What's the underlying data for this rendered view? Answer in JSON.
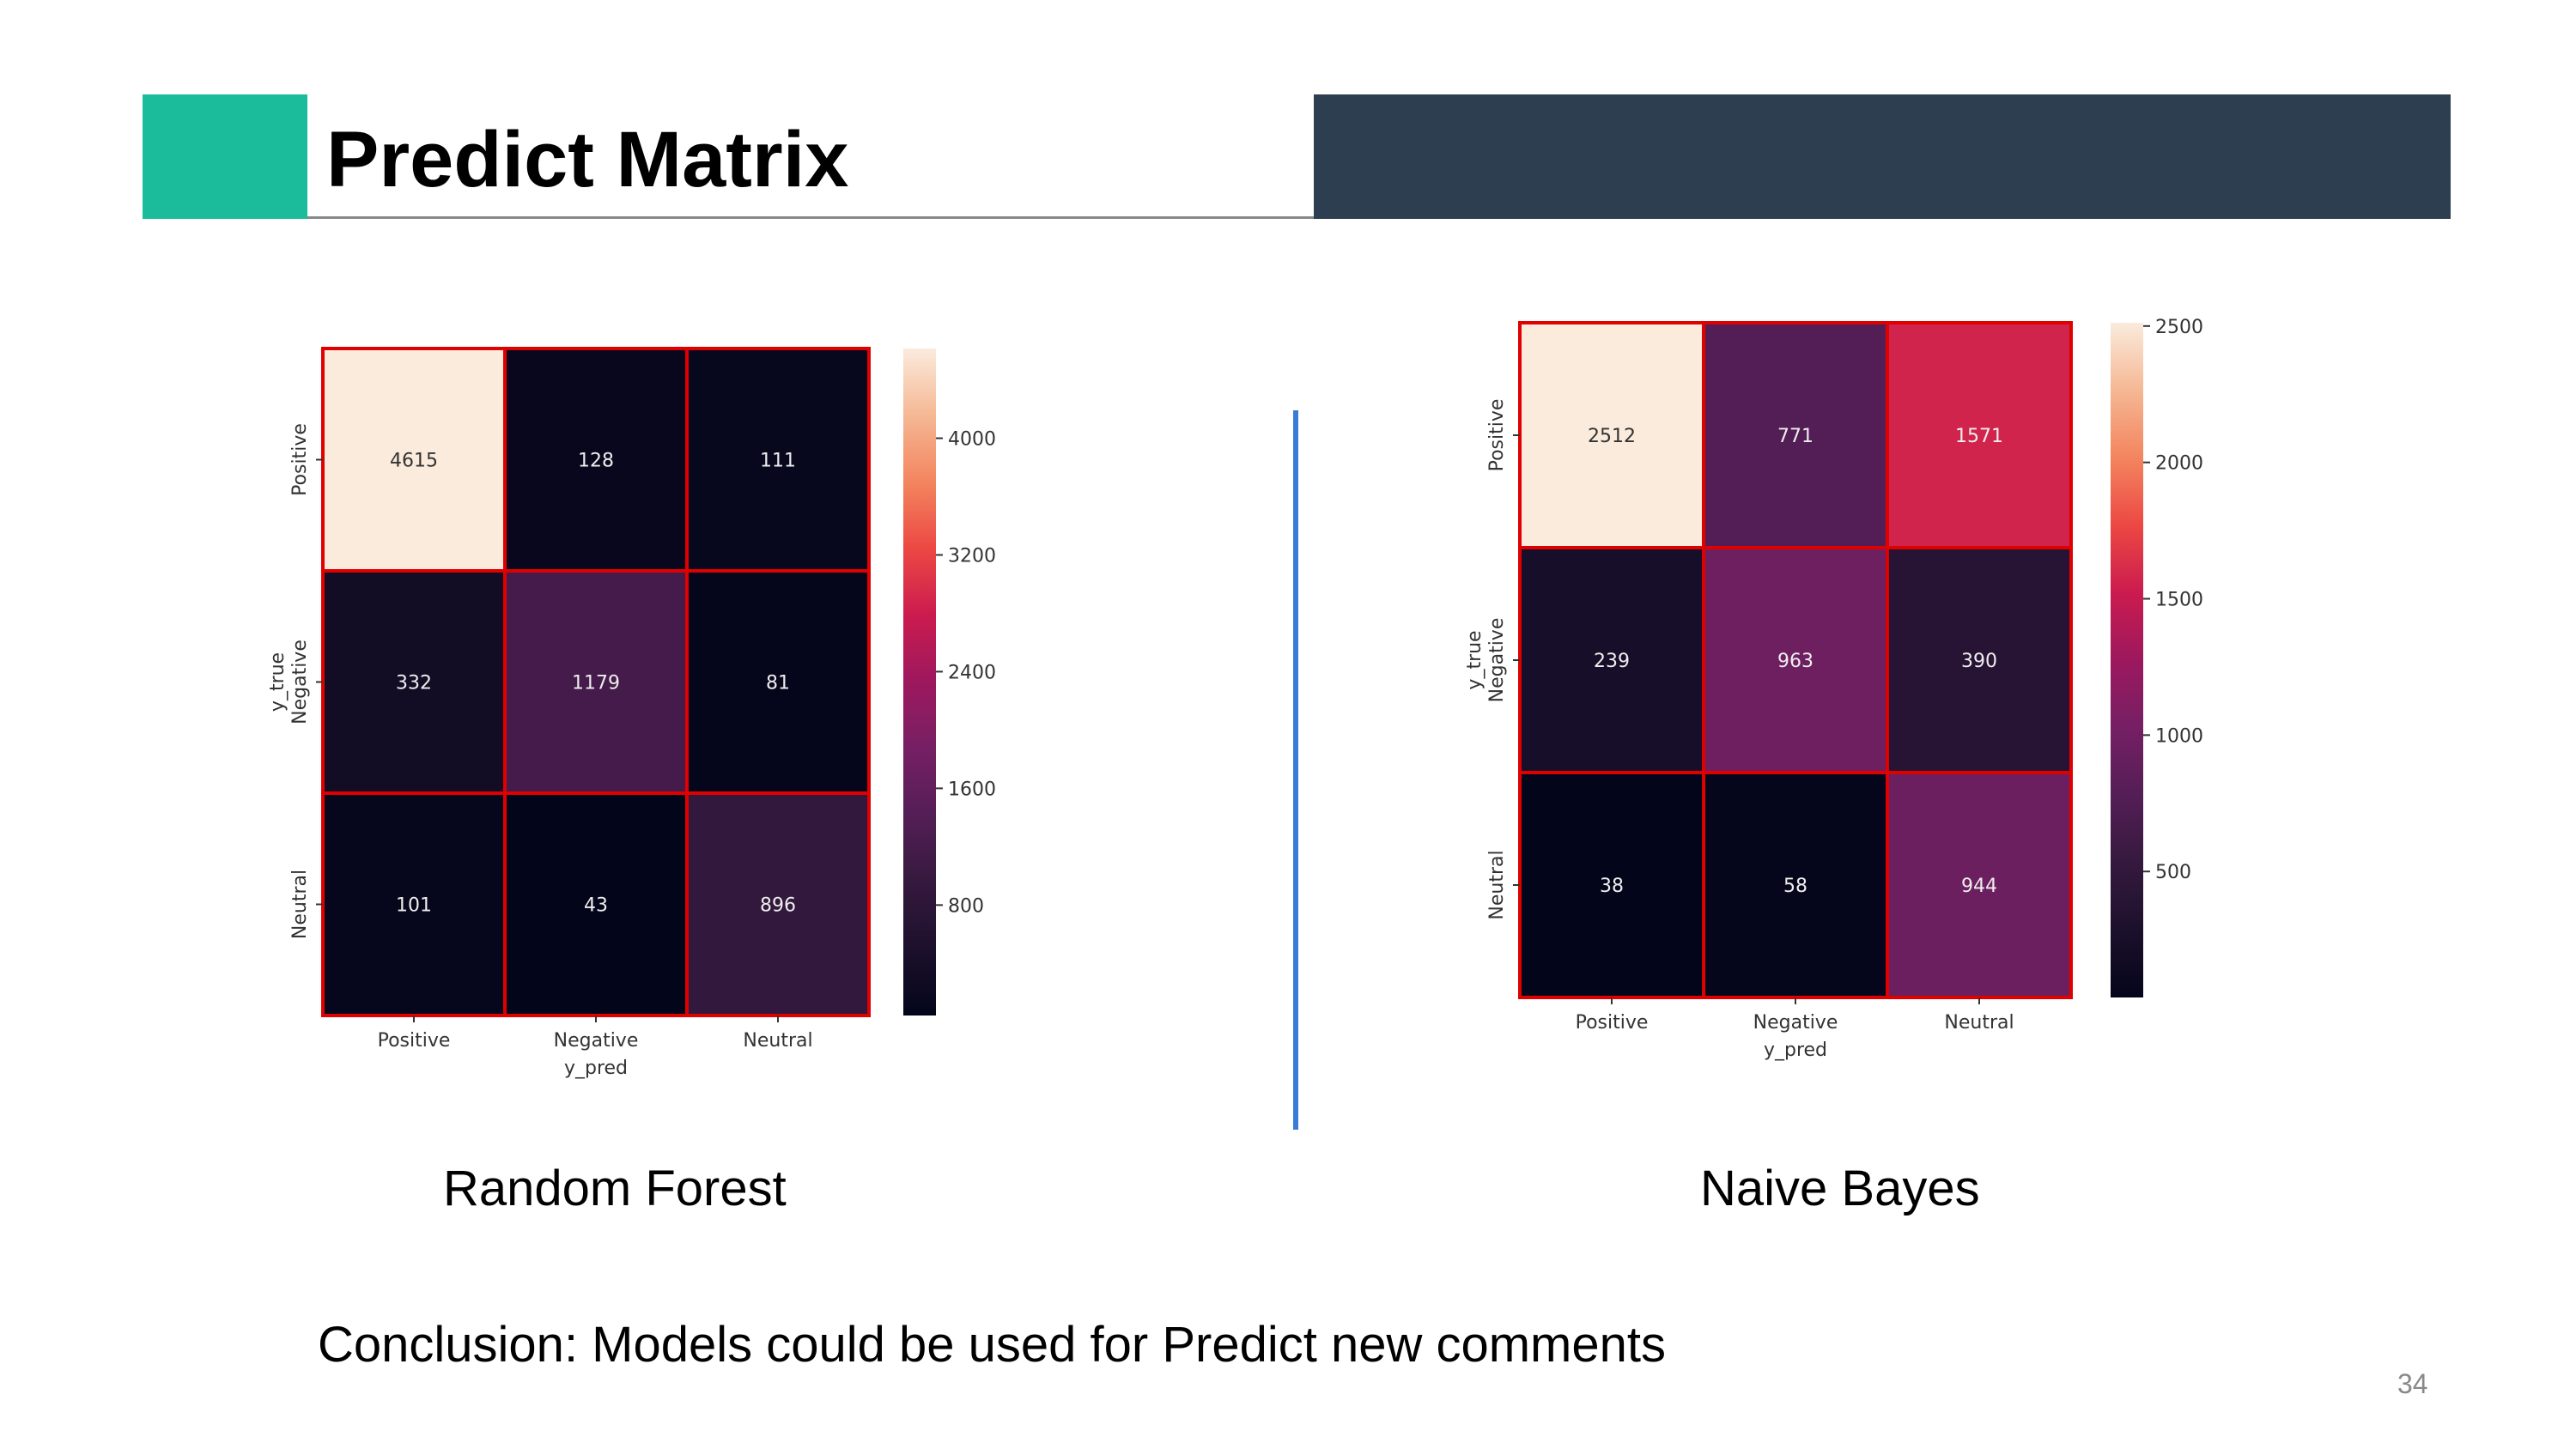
{
  "slide": {
    "title": "Predict Matrix",
    "conclusion": "Conclusion: Models could be used for Predict new comments",
    "page_number": "34",
    "colors": {
      "accent": "#1abc9c",
      "header_dark": "#2c3e50",
      "divider": "#3a7bd5",
      "cell_border": "#e00000"
    }
  },
  "captions": {
    "left": "Random Forest",
    "right": "Naive Bayes"
  },
  "chart_data": [
    {
      "type": "heatmap",
      "xlabel": "y_pred",
      "ylabel": "y_true",
      "x_categories": [
        "Positive",
        "Negative",
        "Neutral"
      ],
      "y_categories": [
        "Positive",
        "Negative",
        "Neutral"
      ],
      "values": [
        [
          4615,
          128,
          111
        ],
        [
          332,
          1179,
          81
        ],
        [
          101,
          43,
          896
        ]
      ],
      "colorbar_ticks": [
        800,
        1600,
        2400,
        3200,
        4000
      ],
      "vmin": 43,
      "vmax": 4615,
      "colormap": "rocket"
    },
    {
      "type": "heatmap",
      "xlabel": "y_pred",
      "ylabel": "y_true",
      "x_categories": [
        "Positive",
        "Negative",
        "Neutral"
      ],
      "y_categories": [
        "Positive",
        "Negative",
        "Neutral"
      ],
      "values": [
        [
          2512,
          771,
          1571
        ],
        [
          239,
          963,
          390
        ],
        [
          38,
          58,
          944
        ]
      ],
      "colorbar_ticks": [
        500,
        1000,
        1500,
        2000,
        2500
      ],
      "vmin": 38,
      "vmax": 2512,
      "colormap": "rocket"
    }
  ]
}
